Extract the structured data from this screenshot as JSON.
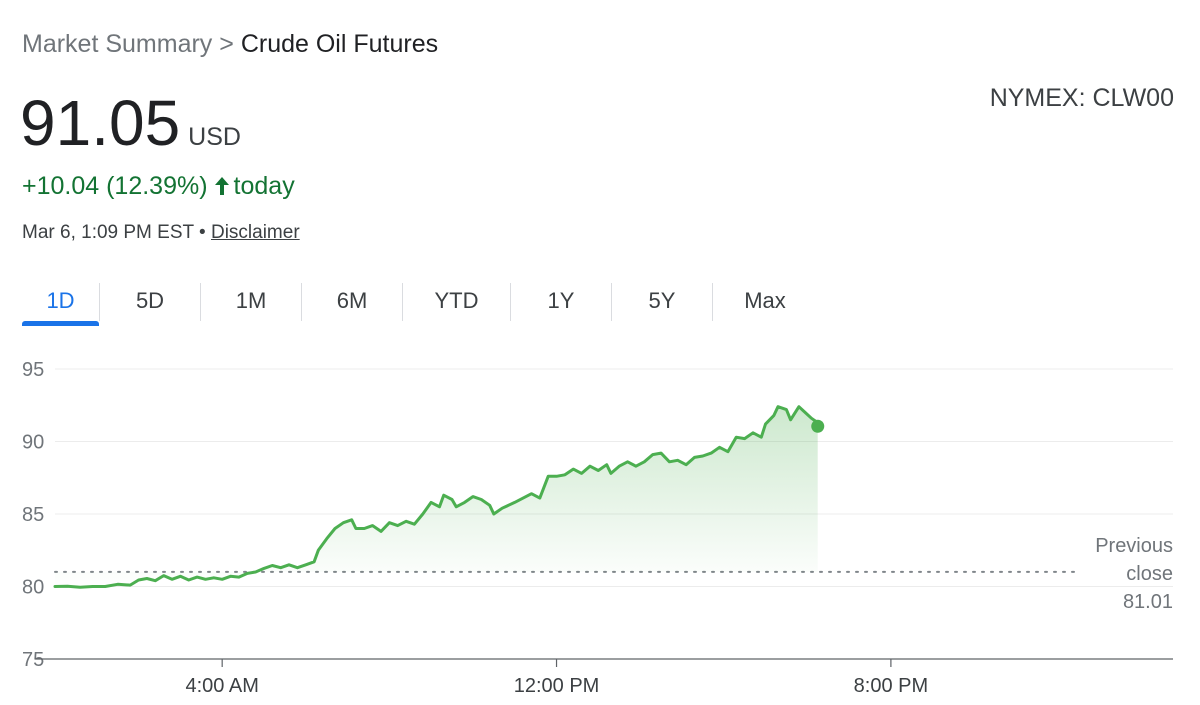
{
  "breadcrumb": {
    "parent": "Market Summary",
    "separator": " > ",
    "current": "Crude Oil Futures"
  },
  "exchange": "NYMEX: CLW00",
  "price": {
    "value": "91.05",
    "currency": "USD"
  },
  "change": {
    "text": "+10.04 (12.39%)",
    "arrow": "arrow-up-icon",
    "suffix": "today",
    "color": "#137333"
  },
  "timestamp": {
    "text": "Mar 6, 1:09 PM EST • ",
    "disclaimer": "Disclaimer"
  },
  "tabs": [
    {
      "label": "1D",
      "active": true
    },
    {
      "label": "5D",
      "active": false
    },
    {
      "label": "1M",
      "active": false
    },
    {
      "label": "6M",
      "active": false
    },
    {
      "label": "YTD",
      "active": false
    },
    {
      "label": "1Y",
      "active": false
    },
    {
      "label": "5Y",
      "active": false
    },
    {
      "label": "Max",
      "active": false
    }
  ],
  "colors": {
    "line": "#4caf50",
    "accent": "#1a73e8",
    "grid": "#ececec"
  },
  "chart_data": {
    "type": "line",
    "yticks": [
      95,
      90,
      85,
      80,
      75
    ],
    "ylim": [
      75,
      95
    ],
    "xticks": [
      {
        "t": 4,
        "label": "4:00 AM"
      },
      {
        "t": 12,
        "label": "12:00 PM"
      },
      {
        "t": 20,
        "label": "8:00 PM"
      }
    ],
    "xlim": [
      0,
      26.75
    ],
    "previous_close": {
      "value": 81.01,
      "label_lines": [
        "Previous",
        "close",
        "81.01"
      ]
    },
    "series": [
      {
        "last_value": 91.05,
        "points": [
          [
            0.0,
            80.0
          ],
          [
            0.3,
            80.02
          ],
          [
            0.6,
            79.95
          ],
          [
            0.9,
            80.0
          ],
          [
            1.2,
            80.0
          ],
          [
            1.5,
            80.15
          ],
          [
            1.8,
            80.1
          ],
          [
            2.0,
            80.45
          ],
          [
            2.2,
            80.55
          ],
          [
            2.4,
            80.4
          ],
          [
            2.6,
            80.75
          ],
          [
            2.8,
            80.5
          ],
          [
            3.0,
            80.7
          ],
          [
            3.2,
            80.45
          ],
          [
            3.4,
            80.65
          ],
          [
            3.6,
            80.5
          ],
          [
            3.8,
            80.6
          ],
          [
            4.0,
            80.5
          ],
          [
            4.2,
            80.7
          ],
          [
            4.4,
            80.65
          ],
          [
            4.6,
            80.9
          ],
          [
            4.8,
            81.0
          ],
          [
            5.0,
            81.25
          ],
          [
            5.2,
            81.45
          ],
          [
            5.4,
            81.3
          ],
          [
            5.6,
            81.5
          ],
          [
            5.8,
            81.3
          ],
          [
            6.0,
            81.5
          ],
          [
            6.2,
            81.7
          ],
          [
            6.3,
            82.5
          ],
          [
            6.5,
            83.3
          ],
          [
            6.7,
            84.0
          ],
          [
            6.9,
            84.4
          ],
          [
            7.1,
            84.6
          ],
          [
            7.2,
            84.0
          ],
          [
            7.4,
            84.0
          ],
          [
            7.6,
            84.2
          ],
          [
            7.8,
            83.8
          ],
          [
            8.0,
            84.4
          ],
          [
            8.2,
            84.2
          ],
          [
            8.4,
            84.5
          ],
          [
            8.6,
            84.3
          ],
          [
            8.8,
            85.0
          ],
          [
            9.0,
            85.8
          ],
          [
            9.2,
            85.5
          ],
          [
            9.3,
            86.3
          ],
          [
            9.5,
            86.0
          ],
          [
            9.6,
            85.5
          ],
          [
            9.8,
            85.8
          ],
          [
            10.0,
            86.2
          ],
          [
            10.2,
            86.0
          ],
          [
            10.4,
            85.6
          ],
          [
            10.5,
            85.0
          ],
          [
            10.7,
            85.4
          ],
          [
            11.0,
            85.8
          ],
          [
            11.2,
            86.1
          ],
          [
            11.4,
            86.4
          ],
          [
            11.6,
            86.1
          ],
          [
            11.8,
            87.6
          ],
          [
            12.0,
            87.6
          ],
          [
            12.2,
            87.7
          ],
          [
            12.4,
            88.1
          ],
          [
            12.6,
            87.8
          ],
          [
            12.8,
            88.3
          ],
          [
            13.0,
            88.0
          ],
          [
            13.2,
            88.4
          ],
          [
            13.3,
            87.8
          ],
          [
            13.5,
            88.3
          ],
          [
            13.7,
            88.6
          ],
          [
            13.9,
            88.3
          ],
          [
            14.1,
            88.6
          ],
          [
            14.3,
            89.1
          ],
          [
            14.5,
            89.2
          ],
          [
            14.7,
            88.6
          ],
          [
            14.9,
            88.7
          ],
          [
            15.1,
            88.4
          ],
          [
            15.3,
            88.9
          ],
          [
            15.5,
            89.0
          ],
          [
            15.7,
            89.2
          ],
          [
            15.9,
            89.6
          ],
          [
            16.1,
            89.3
          ],
          [
            16.3,
            90.3
          ],
          [
            16.5,
            90.2
          ],
          [
            16.7,
            90.6
          ],
          [
            16.9,
            90.3
          ],
          [
            17.0,
            91.2
          ],
          [
            17.2,
            91.8
          ],
          [
            17.3,
            92.4
          ],
          [
            17.5,
            92.2
          ],
          [
            17.6,
            91.5
          ],
          [
            17.8,
            92.4
          ],
          [
            17.95,
            92.0
          ],
          [
            18.1,
            91.6
          ],
          [
            18.2,
            91.4
          ],
          [
            18.25,
            91.05
          ]
        ]
      }
    ]
  }
}
